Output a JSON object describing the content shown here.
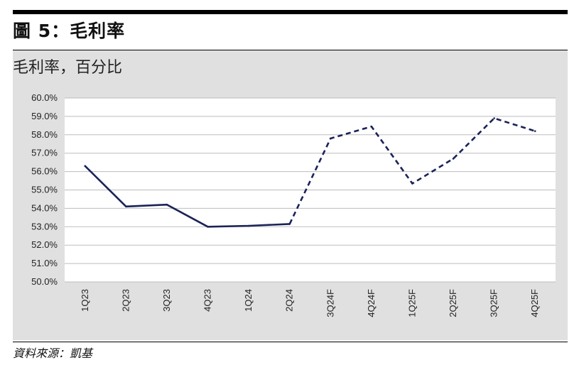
{
  "figure": {
    "title": "圖 5：毛利率",
    "subtitle": "毛利率，百分比",
    "source": "資料來源：凱基"
  },
  "chart_data": {
    "type": "line",
    "title": "圖 5：毛利率",
    "subtitle": "毛利率，百分比",
    "xlabel": "",
    "ylabel": "",
    "categories": [
      "1Q23",
      "2Q23",
      "3Q23",
      "4Q23",
      "1Q24",
      "2Q24",
      "3Q24F",
      "4Q24F",
      "1Q25F",
      "2Q25F",
      "3Q25F",
      "4Q25F"
    ],
    "values": [
      56.3,
      54.1,
      54.2,
      53.0,
      53.05,
      53.15,
      57.8,
      58.45,
      55.35,
      56.7,
      58.9,
      58.2
    ],
    "actual_count": 6,
    "forecast_style": "dashed",
    "line_color": "#1a2358",
    "ylim": [
      50,
      60
    ],
    "yticks": [
      "60.0%",
      "59.0%",
      "58.0%",
      "57.0%",
      "56.0%",
      "55.0%",
      "54.0%",
      "53.0%",
      "52.0%",
      "51.0%",
      "50.0%"
    ],
    "grid": true,
    "legend": "none"
  }
}
